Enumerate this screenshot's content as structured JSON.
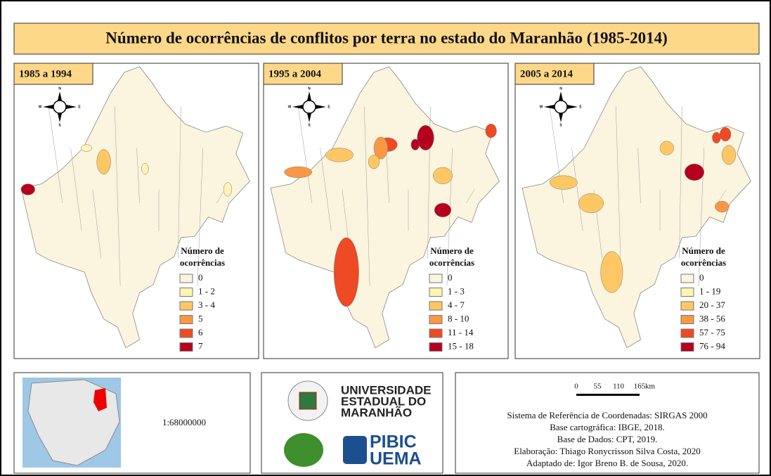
{
  "title": "Número de ocorrências de conflitos por terra no estado do Maranhão (1985-2014)",
  "compass": {
    "n": "N",
    "s": "S",
    "e": "E",
    "w": "W"
  },
  "panels": [
    {
      "label": "1985 a 1994",
      "legend_title": [
        "Número de",
        "ocorrências"
      ],
      "classes": [
        {
          "label": "0",
          "color": "#fbf4df"
        },
        {
          "label": "1 - 2",
          "color": "#fef4b3"
        },
        {
          "label": "3 - 4",
          "color": "#fdc764"
        },
        {
          "label": "5",
          "color": "#f99844"
        },
        {
          "label": "6",
          "color": "#ee4a24"
        },
        {
          "label": "7",
          "color": "#b5001e"
        }
      ]
    },
    {
      "label": "1995 a 2004",
      "legend_title": [
        "Número de",
        "ocorrências"
      ],
      "classes": [
        {
          "label": "0",
          "color": "#fbf4df"
        },
        {
          "label": "1 - 3",
          "color": "#fef4b3"
        },
        {
          "label": "4 - 7",
          "color": "#fdc764"
        },
        {
          "label": "8 - 10",
          "color": "#f99844"
        },
        {
          "label": "11 - 14",
          "color": "#ee4a24"
        },
        {
          "label": "15 - 18",
          "color": "#b5001e"
        }
      ]
    },
    {
      "label": "2005 a 2014",
      "legend_title": [
        "Número de",
        "ocorrências"
      ],
      "classes": [
        {
          "label": "0",
          "color": "#fbf4df"
        },
        {
          "label": "1 - 19",
          "color": "#fef4b3"
        },
        {
          "label": "20 - 37",
          "color": "#fdc764"
        },
        {
          "label": "38 - 56",
          "color": "#f99844"
        },
        {
          "label": "57 - 75",
          "color": "#ee4a24"
        },
        {
          "label": "76 - 94",
          "color": "#b5001e"
        }
      ]
    }
  ],
  "scale": "1:68000000",
  "university": [
    "UNIVERSIDADE",
    "ESTADUAL DO",
    "MARANHÃO"
  ],
  "pibic": [
    "PIBIC",
    "UEMA"
  ],
  "scalebar": {
    "ticks": [
      "0",
      "55",
      "110",
      "165"
    ],
    "unit": "km"
  },
  "credits": [
    "Sistema de Referência de Coordenadas: SIRGAS 2000",
    "Base cartográfica: IBGE, 2018.",
    "Base de Dados: CPT, 2019.",
    "Elaboração: Thiago Ronycrisson Silva Costa, 2020",
    "Adaptado de: Igor Breno B. de Sousa, 2020."
  ]
}
